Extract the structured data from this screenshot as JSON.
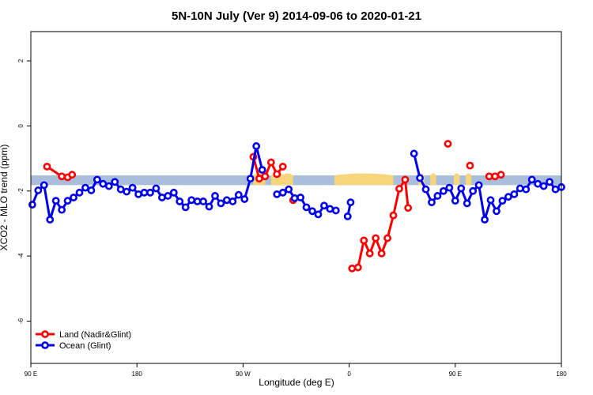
{
  "chart_data": {
    "type": "line",
    "title": "5N-10N July (Ver 9)   2014-09-06 to 2020-01-21",
    "xlabel": "Longitude (deg E)",
    "ylabel": "XCO2 - MLO trend (ppm)",
    "xlim": [
      -180,
      180
    ],
    "ylim": [
      -7.3,
      2.9
    ],
    "x_ticks": [
      {
        "value": -180,
        "label": "90 E"
      },
      {
        "value": -108,
        "label": "180"
      },
      {
        "value": -36,
        "label": "90 W"
      },
      {
        "value": 36,
        "label": "0"
      },
      {
        "value": 108,
        "label": "90 E"
      },
      {
        "value": 180,
        "label": "180"
      }
    ],
    "y_ticks": [
      {
        "value": 2,
        "label": "2"
      },
      {
        "value": 0,
        "label": "0"
      },
      {
        "value": -2,
        "label": "-2"
      },
      {
        "value": -4,
        "label": "-4"
      },
      {
        "value": -6,
        "label": "-6"
      }
    ],
    "band": {
      "ymin": -1.82,
      "ymax": -1.52,
      "ocean_color": "#a8bedb",
      "land_color": "#f7d57c",
      "land_ranges": [
        [
          -29,
          -21
        ],
        [
          -17,
          -8
        ],
        [
          -9,
          -2
        ],
        [
          26,
          66
        ],
        [
          83,
          87
        ],
        [
          91,
          95
        ],
        [
          107,
          111
        ],
        [
          115,
          119
        ]
      ]
    },
    "series": [
      {
        "name": "Land (Nadir&Glint)",
        "color": "#ff0000",
        "segments": [
          [
            [
              -169,
              -1.25
            ],
            [
              -159,
              -1.55
            ],
            [
              -155,
              -1.58
            ],
            [
              -152,
              -1.5
            ]
          ],
          [
            [
              -29,
              -0.95
            ],
            [
              -25,
              -1.62
            ],
            [
              -21,
              -1.55
            ],
            [
              -17,
              -1.12
            ],
            [
              -13,
              -1.48
            ],
            [
              -9,
              -1.25
            ]
          ],
          [
            [
              -2,
              -2.28
            ]
          ],
          [
            [
              38,
              -4.38
            ],
            [
              42,
              -4.35
            ],
            [
              46,
              -3.52
            ],
            [
              50,
              -3.92
            ],
            [
              54,
              -3.45
            ],
            [
              58,
              -3.92
            ],
            [
              62,
              -3.45
            ],
            [
              66,
              -2.75
            ],
            [
              70,
              -1.93
            ],
            [
              74,
              -1.65
            ],
            [
              76,
              -2.52
            ]
          ],
          [
            [
              103,
              -0.55
            ]
          ],
          [
            [
              118,
              -1.22
            ]
          ],
          [
            [
              131,
              -1.55
            ],
            [
              135,
              -1.55
            ],
            [
              139,
              -1.5
            ]
          ]
        ]
      },
      {
        "name": "Ocean (Glint)",
        "color": "#0000ee",
        "segments": [
          [
            [
              -179,
              -2.42
            ],
            [
              -175,
              -1.98
            ],
            [
              -171,
              -1.82
            ],
            [
              -167,
              -2.88
            ],
            [
              -163,
              -2.3
            ],
            [
              -159,
              -2.58
            ],
            [
              -155,
              -2.3
            ],
            [
              -151,
              -2.2
            ],
            [
              -147,
              -2.05
            ],
            [
              -143,
              -1.9
            ],
            [
              -139,
              -1.98
            ],
            [
              -135,
              -1.65
            ],
            [
              -131,
              -1.78
            ],
            [
              -127,
              -1.85
            ],
            [
              -123,
              -1.72
            ],
            [
              -119,
              -1.95
            ],
            [
              -115,
              -2.02
            ],
            [
              -111,
              -1.9
            ],
            [
              -107,
              -2.1
            ],
            [
              -103,
              -2.05
            ],
            [
              -99,
              -2.05
            ],
            [
              -95,
              -1.92
            ],
            [
              -91,
              -2.2
            ],
            [
              -87,
              -2.15
            ],
            [
              -83,
              -2.05
            ],
            [
              -79,
              -2.32
            ],
            [
              -75,
              -2.5
            ],
            [
              -71,
              -2.28
            ],
            [
              -67,
              -2.32
            ],
            [
              -63,
              -2.32
            ],
            [
              -59,
              -2.48
            ],
            [
              -55,
              -2.15
            ],
            [
              -51,
              -2.38
            ],
            [
              -47,
              -2.28
            ],
            [
              -43,
              -2.32
            ],
            [
              -39,
              -2.12
            ],
            [
              -35,
              -2.25
            ],
            [
              -31,
              -1.62
            ],
            [
              -27,
              -0.62
            ],
            [
              -23,
              -1.35
            ]
          ],
          [
            [
              -13,
              -2.1
            ],
            [
              -9,
              -2.05
            ],
            [
              -5,
              -1.95
            ],
            [
              -1,
              -2.22
            ],
            [
              3,
              -2.2
            ],
            [
              7,
              -2.5
            ],
            [
              11,
              -2.62
            ],
            [
              15,
              -2.72
            ],
            [
              19,
              -2.45
            ],
            [
              23,
              -2.55
            ],
            [
              27,
              -2.6
            ]
          ],
          [
            [
              35,
              -2.78
            ],
            [
              37,
              -2.35
            ]
          ],
          [
            [
              80,
              -0.85
            ],
            [
              84,
              -1.6
            ],
            [
              88,
              -1.95
            ],
            [
              92,
              -2.35
            ],
            [
              96,
              -2.15
            ],
            [
              100,
              -2.0
            ],
            [
              104,
              -1.9
            ],
            [
              108,
              -2.3
            ],
            [
              112,
              -1.92
            ],
            [
              116,
              -2.38
            ],
            [
              120,
              -2.0
            ],
            [
              124,
              -1.82
            ],
            [
              128,
              -2.88
            ],
            [
              132,
              -2.28
            ],
            [
              136,
              -2.62
            ],
            [
              140,
              -2.3
            ],
            [
              144,
              -2.18
            ],
            [
              148,
              -2.1
            ],
            [
              152,
              -1.92
            ],
            [
              156,
              -1.95
            ],
            [
              160,
              -1.65
            ],
            [
              164,
              -1.78
            ],
            [
              168,
              -1.85
            ],
            [
              172,
              -1.72
            ],
            [
              176,
              -1.95
            ],
            [
              180,
              -1.88
            ]
          ]
        ]
      }
    ],
    "legend": {
      "position": "bottom-left",
      "entries": [
        {
          "label": "Land (Nadir&Glint)",
          "color": "#ff0000"
        },
        {
          "label": "Ocean (Glint)",
          "color": "#0000ee"
        }
      ]
    }
  }
}
